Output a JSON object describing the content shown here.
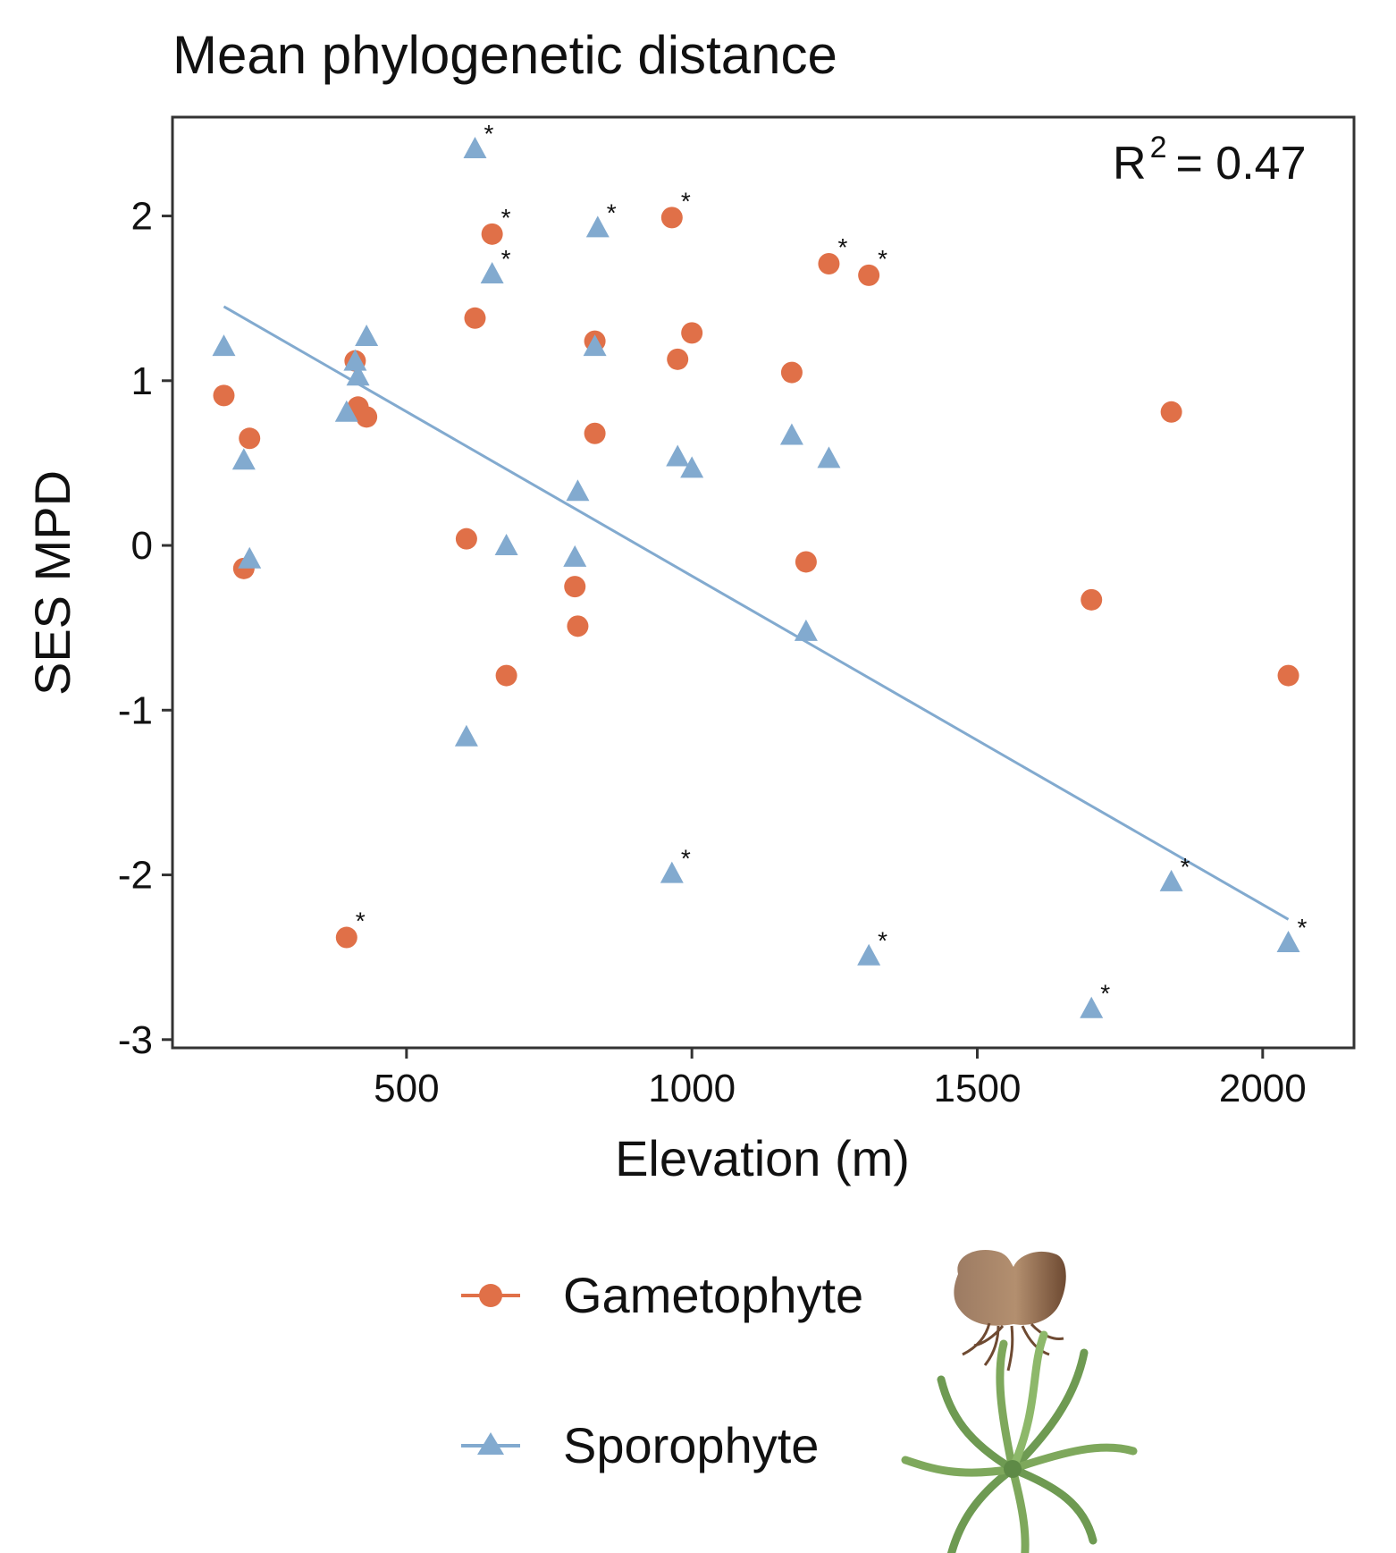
{
  "chart_data": {
    "type": "scatter",
    "title": "Mean phylogenetic distance",
    "xlabel": "Elevation (m)",
    "ylabel": "SES MPD",
    "xlim": [
      90,
      2160
    ],
    "ylim": [
      -3.05,
      2.6
    ],
    "xticks": [
      500,
      1000,
      1500,
      2000
    ],
    "yticks": [
      2,
      1,
      0,
      -1,
      -2,
      -3
    ],
    "grid": false,
    "legend_position": "bottom",
    "annotation": {
      "text_base": "R",
      "text_sup": "2",
      "text_value": "= 0.47"
    },
    "significance_marker": "*",
    "colors": {
      "gametophyte": "#E07048",
      "sporophyte": "#82AACF",
      "axis": "#333333"
    },
    "series": [
      {
        "name": "Gametophyte",
        "marker": "circle",
        "points": [
          {
            "x": 180,
            "y": 0.91
          },
          {
            "x": 225,
            "y": 0.65
          },
          {
            "x": 215,
            "y": -0.14
          },
          {
            "x": 395,
            "y": -2.38,
            "sig": true
          },
          {
            "x": 410,
            "y": 1.12
          },
          {
            "x": 415,
            "y": 0.84
          },
          {
            "x": 430,
            "y": 0.78
          },
          {
            "x": 605,
            "y": 0.04
          },
          {
            "x": 620,
            "y": 1.38
          },
          {
            "x": 650,
            "y": 1.89,
            "sig": true
          },
          {
            "x": 675,
            "y": -0.79
          },
          {
            "x": 795,
            "y": -0.25
          },
          {
            "x": 800,
            "y": -0.49
          },
          {
            "x": 830,
            "y": 1.24
          },
          {
            "x": 830,
            "y": 0.68
          },
          {
            "x": 965,
            "y": 1.99,
            "sig": true
          },
          {
            "x": 975,
            "y": 1.13
          },
          {
            "x": 1000,
            "y": 1.29
          },
          {
            "x": 1175,
            "y": 1.05
          },
          {
            "x": 1200,
            "y": -0.1
          },
          {
            "x": 1240,
            "y": 1.71,
            "sig": true
          },
          {
            "x": 1310,
            "y": 1.64,
            "sig": true
          },
          {
            "x": 1700,
            "y": -0.33
          },
          {
            "x": 1840,
            "y": 0.81
          },
          {
            "x": 2045,
            "y": -0.79
          }
        ]
      },
      {
        "name": "Sporophyte",
        "marker": "triangle",
        "points": [
          {
            "x": 180,
            "y": 1.2
          },
          {
            "x": 215,
            "y": 0.51
          },
          {
            "x": 225,
            "y": -0.09
          },
          {
            "x": 395,
            "y": 0.8
          },
          {
            "x": 410,
            "y": 1.11
          },
          {
            "x": 415,
            "y": 1.02
          },
          {
            "x": 430,
            "y": 1.26
          },
          {
            "x": 605,
            "y": -1.17
          },
          {
            "x": 620,
            "y": 2.4,
            "sig": true
          },
          {
            "x": 650,
            "y": 1.64,
            "sig": true
          },
          {
            "x": 675,
            "y": -0.01
          },
          {
            "x": 795,
            "y": -0.08
          },
          {
            "x": 800,
            "y": 0.32
          },
          {
            "x": 830,
            "y": 1.2
          },
          {
            "x": 835,
            "y": 1.92,
            "sig": true
          },
          {
            "x": 965,
            "y": -2.0,
            "sig": true
          },
          {
            "x": 975,
            "y": 0.53
          },
          {
            "x": 1000,
            "y": 0.46
          },
          {
            "x": 1175,
            "y": 0.66
          },
          {
            "x": 1200,
            "y": -0.53
          },
          {
            "x": 1240,
            "y": 0.52
          },
          {
            "x": 1310,
            "y": -2.5,
            "sig": true
          },
          {
            "x": 1700,
            "y": -2.82,
            "sig": true
          },
          {
            "x": 1840,
            "y": -2.05,
            "sig": true
          },
          {
            "x": 2045,
            "y": -2.42,
            "sig": true
          }
        ]
      }
    ],
    "trendline": {
      "series": "Sporophyte",
      "x": [
        180,
        2045
      ],
      "y": [
        1.45,
        -2.27
      ]
    }
  },
  "legend": {
    "items": [
      {
        "label": "Gametophyte",
        "icon": "gametophyte-icon"
      },
      {
        "label": "Sporophyte",
        "icon": "fern-icon"
      }
    ]
  }
}
